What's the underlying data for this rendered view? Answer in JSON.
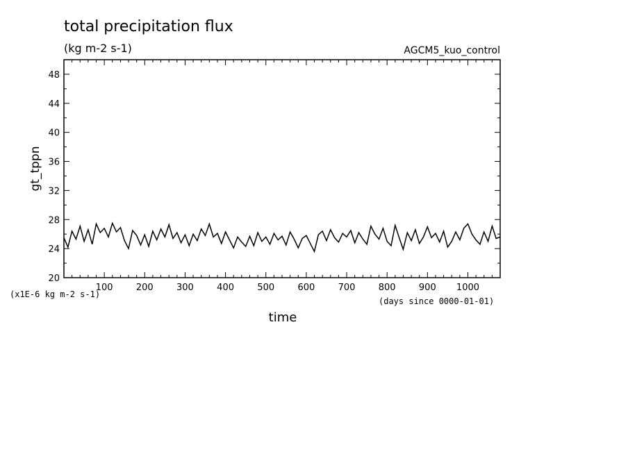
{
  "chart_data": {
    "type": "line",
    "title": "total precipitation flux",
    "units_label": "(kg m-2 s-1)",
    "experiment": "AGCM5_kuo_control",
    "ylabel": "gt_tppn",
    "xlabel": "time",
    "y_units_note": "(x1E-6 kg m-2 s-1)",
    "x_units_note": "(days since 0000-01-01)",
    "xlim": [
      0,
      1080
    ],
    "ylim": [
      20,
      50
    ],
    "x_ticks": [
      100,
      200,
      300,
      400,
      500,
      600,
      700,
      800,
      900,
      1000
    ],
    "y_ticks": [
      24,
      28,
      32,
      36,
      40,
      44,
      48
    ],
    "series": [
      {
        "color": "#000000",
        "x": [
          0,
          10,
          20,
          30,
          40,
          50,
          60,
          70,
          80,
          90,
          100,
          110,
          120,
          130,
          140,
          150,
          160,
          170,
          180,
          190,
          200,
          210,
          220,
          230,
          240,
          250,
          260,
          270,
          280,
          290,
          300,
          310,
          320,
          330,
          340,
          350,
          360,
          370,
          380,
          390,
          400,
          410,
          420,
          430,
          440,
          450,
          460,
          470,
          480,
          490,
          500,
          510,
          520,
          530,
          540,
          550,
          560,
          570,
          580,
          590,
          600,
          610,
          620,
          630,
          640,
          650,
          660,
          670,
          680,
          690,
          700,
          710,
          720,
          730,
          740,
          750,
          760,
          770,
          780,
          790,
          800,
          810,
          820,
          830,
          840,
          850,
          860,
          870,
          880,
          890,
          900,
          910,
          920,
          930,
          940,
          950,
          960,
          970,
          980,
          990,
          1000,
          1010,
          1020,
          1030,
          1040,
          1050,
          1060,
          1070,
          1080
        ],
        "y": [
          25.5,
          24.2,
          26.4,
          25.3,
          27.1,
          25.0,
          26.6,
          24.6,
          27.4,
          26.2,
          26.8,
          25.6,
          27.5,
          26.3,
          26.9,
          25.1,
          24.0,
          26.5,
          25.8,
          24.5,
          25.9,
          24.3,
          26.4,
          25.2,
          26.7,
          25.6,
          27.3,
          25.4,
          26.2,
          24.8,
          25.9,
          24.4,
          26.0,
          25.1,
          26.7,
          25.8,
          27.4,
          25.6,
          26.1,
          24.7,
          26.3,
          25.2,
          24.1,
          25.6,
          24.9,
          24.3,
          25.7,
          24.4,
          26.2,
          25.0,
          25.6,
          24.6,
          26.1,
          25.2,
          25.7,
          24.5,
          26.3,
          25.3,
          24.1,
          25.4,
          25.8,
          24.7,
          23.6,
          25.9,
          26.4,
          25.1,
          26.6,
          25.5,
          24.9,
          26.1,
          25.6,
          26.5,
          24.8,
          26.2,
          25.3,
          24.6,
          27.1,
          26.0,
          25.3,
          26.8,
          25.0,
          24.4,
          27.2,
          25.5,
          23.9,
          26.2,
          25.1,
          26.6,
          24.7,
          25.6,
          27.0,
          25.5,
          26.1,
          24.9,
          26.4,
          24.2,
          25.0,
          26.3,
          25.2,
          26.8,
          27.4,
          26.0,
          25.2,
          24.6,
          26.3,
          25.0,
          27.1,
          25.4,
          25.6
        ]
      }
    ]
  }
}
